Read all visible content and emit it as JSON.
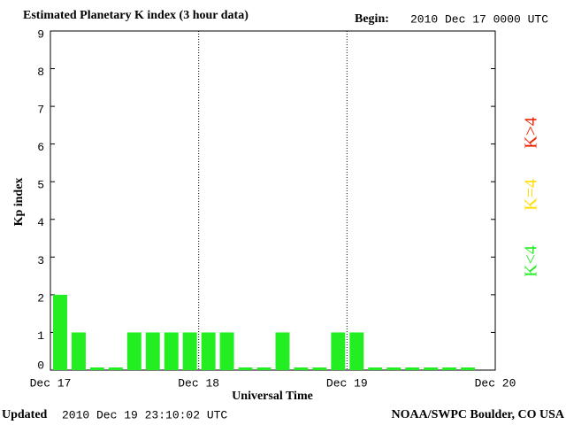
{
  "chart_data": {
    "type": "bar",
    "title": "Estimated Planetary K index (3 hour data)",
    "begin_label": "Begin:",
    "begin": "2010 Dec 17 0000 UTC",
    "y_label": "Kp index",
    "x_label": "Universal Time",
    "updated_label": "Updated",
    "updated": "2010 Dec 19 23:10:02 UTC",
    "source": "NOAA/SWPC Boulder, CO USA",
    "xticks": [
      "Dec 17",
      "Dec 18",
      "Dec 19",
      "Dec 20"
    ],
    "bars_per_tick": 8,
    "values": [
      2,
      1,
      0,
      0,
      1,
      1,
      1,
      1,
      1,
      1,
      0,
      0,
      1,
      0,
      0,
      1,
      1,
      0,
      0,
      0,
      0,
      0,
      0
    ],
    "ylim": [
      0,
      9
    ],
    "yticks": [
      0,
      1,
      2,
      3,
      4,
      5,
      6,
      7,
      8,
      9
    ],
    "legend": [
      {
        "name": "K<4",
        "color": "#22ee22"
      },
      {
        "name": "K=4",
        "color": "#ffdd00"
      },
      {
        "name": "K>4",
        "color": "#ee2200"
      }
    ],
    "threshold": 4
  }
}
